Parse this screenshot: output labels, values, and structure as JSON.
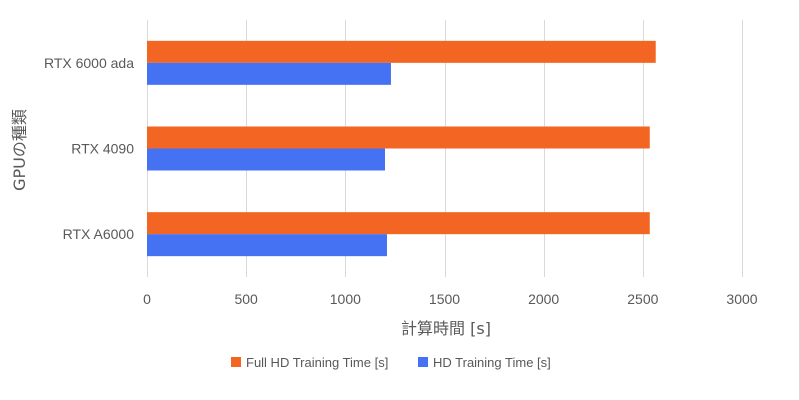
{
  "chart_data": {
    "type": "bar",
    "orientation": "horizontal",
    "categories": [
      "RTX 6000 ada",
      "RTX 4090",
      "RTX A6000"
    ],
    "series": [
      {
        "name": "Full HD Training Time [s]",
        "color": "#F36523",
        "values": [
          2565,
          2535,
          2535
        ]
      },
      {
        "name": "HD Training Time [s]",
        "color": "#4472F2",
        "values": [
          1230,
          1200,
          1210
        ]
      }
    ],
    "xlabel": "計算時間 [s]",
    "ylabel": "GPUの種類",
    "xlim": [
      0,
      3000
    ],
    "xticks": [
      "0",
      "500",
      "1000",
      "1500",
      "2000",
      "2500",
      "3000"
    ],
    "grid": "vertical",
    "legend_position": "bottom"
  }
}
